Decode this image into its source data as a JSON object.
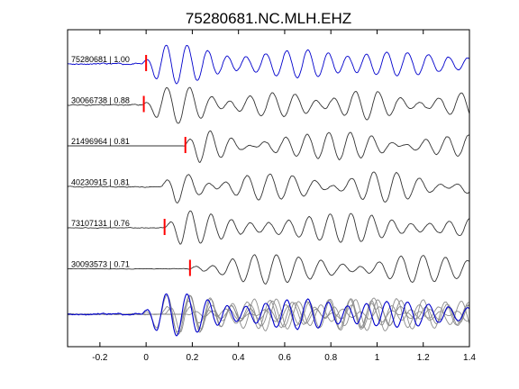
{
  "chart_data": {
    "type": "line",
    "title": "75280681.NC.MLH.EHZ",
    "xlabel": "",
    "ylabel": "",
    "xlim": [
      -0.34,
      1.4
    ],
    "xticks": [
      -0.2,
      0,
      0.2,
      0.4,
      0.6,
      0.8,
      1,
      1.2,
      1.4
    ],
    "xtick_labels": [
      "-0.2",
      "0",
      "0.2",
      "0.4",
      "0.6",
      "0.8",
      "1",
      "1.2",
      "1.4"
    ],
    "grid": false,
    "colors": {
      "reference": "#0000cc",
      "other": "#333333",
      "pick": "#ff0000",
      "overlay_other": "#8c8c8c"
    },
    "traces": [
      {
        "label": "75280681 | 1.00",
        "id": "75280681",
        "cc": 1.0,
        "pick_time": 0.0,
        "onset": -0.02,
        "pre_noise": 0.08,
        "amp": 1.0,
        "freq": 11.5,
        "decay": 0.35,
        "seed": 11,
        "reference": true
      },
      {
        "label": "30066738 | 0.88",
        "id": "30066738",
        "cc": 0.88,
        "pick_time": -0.01,
        "onset": -0.02,
        "pre_noise": 0.06,
        "amp": 0.95,
        "freq": 11.0,
        "decay": 0.3,
        "seed": 23,
        "reference": false
      },
      {
        "label": "21496964 | 0.81",
        "id": "21496964",
        "cc": 0.81,
        "pick_time": 0.17,
        "onset": 0.16,
        "pre_noise": 0.0,
        "amp": 0.95,
        "freq": 11.5,
        "decay": 0.25,
        "seed": 37,
        "reference": false
      },
      {
        "label": "40230915 | 0.81",
        "id": "40230915",
        "cc": 0.81,
        "pick_time": null,
        "onset": 0.06,
        "pre_noise": 0.05,
        "amp": 0.95,
        "freq": 11.0,
        "decay": 0.2,
        "seed": 41,
        "reference": false
      },
      {
        "label": "73107131 | 0.76",
        "id": "73107131",
        "cc": 0.76,
        "pick_time": 0.08,
        "onset": 0.08,
        "pre_noise": 0.04,
        "amp": 0.9,
        "freq": 11.5,
        "decay": 0.3,
        "seed": 53,
        "reference": false
      },
      {
        "label": "30093573 | 0.71",
        "id": "30093573",
        "cc": 0.71,
        "pick_time": 0.19,
        "onset": 0.18,
        "pre_noise": 0.03,
        "amp": 0.95,
        "freq": 11.0,
        "decay": 0.3,
        "seed": 67,
        "reference": false
      }
    ],
    "overlay": true
  }
}
